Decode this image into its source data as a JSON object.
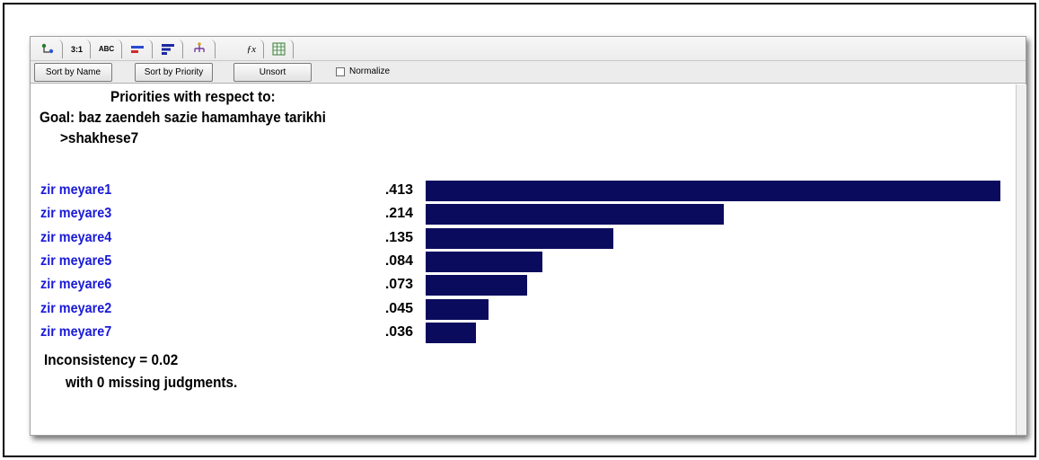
{
  "toolbar": {
    "sort_name_label": "Sort by Name",
    "sort_priority_label": "Sort by Priority",
    "unsort_label": "Unsort",
    "normalize_label": "Normalize",
    "normalize_checked": false
  },
  "tabs": [
    {
      "icon": "tree-icon"
    },
    {
      "label": "3:1"
    },
    {
      "label": "ABC"
    },
    {
      "icon": "bar-graph-icon"
    },
    {
      "icon": "bars-sorted-icon"
    },
    {
      "icon": "hierarchy-icon"
    },
    {
      "icon": "formula-icon"
    },
    {
      "icon": "table-icon"
    }
  ],
  "heading": {
    "line1": "Priorities with respect to:",
    "line2": "Goal: baz zaendeh sazie hamamhaye tarikhi",
    "line3": ">shakhese7"
  },
  "chart_data": {
    "type": "bar",
    "orientation": "horizontal",
    "categories": [
      "zir meyare1",
      "zir meyare3",
      "zir meyare4",
      "zir meyare5",
      "zir meyare6",
      "zir meyare2",
      "zir meyare7"
    ],
    "values": [
      0.413,
      0.214,
      0.135,
      0.084,
      0.073,
      0.045,
      0.036
    ],
    "value_labels": [
      ".413",
      ".214",
      ".135",
      ".084",
      ".073",
      ".045",
      ".036"
    ],
    "bar_color": "#0b0b5e",
    "label_color": "#1a1ad6"
  },
  "footer": {
    "inconsistency": "Inconsistency = 0.02",
    "missing": "with 0  missing judgments."
  }
}
